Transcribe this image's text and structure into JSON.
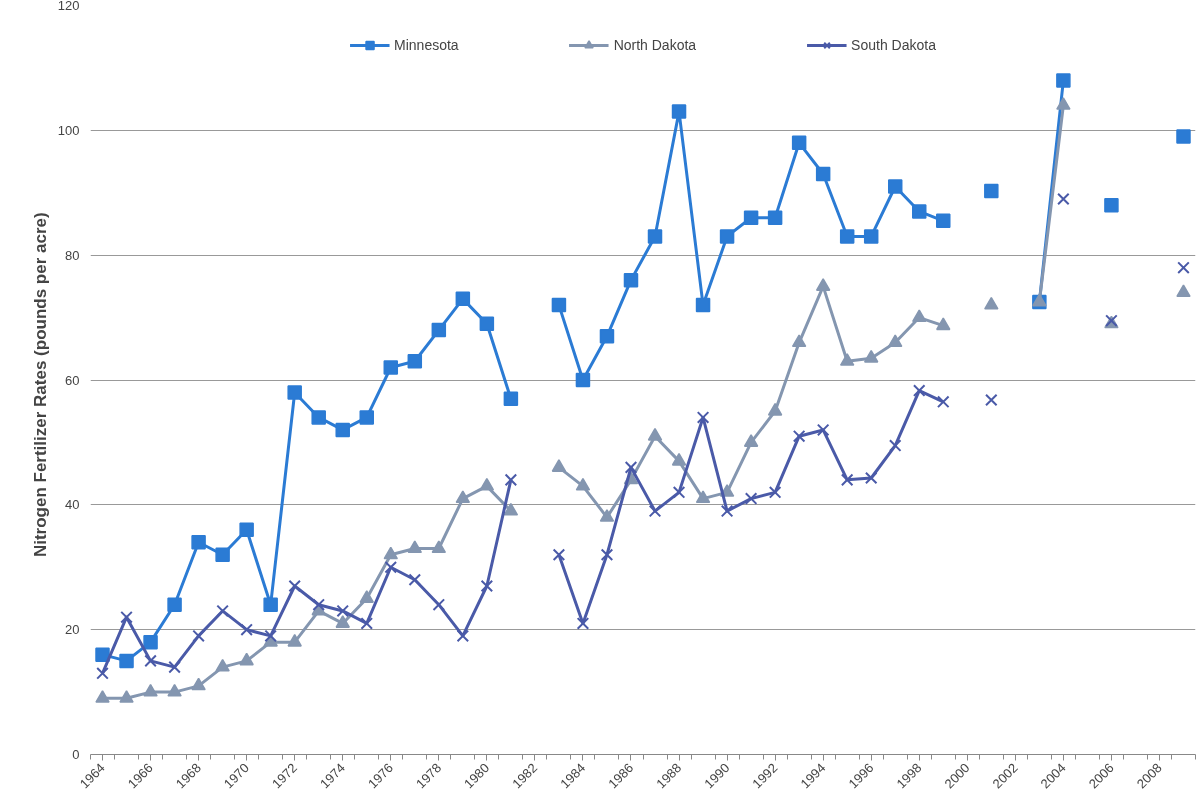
{
  "chart_data": {
    "type": "line",
    "ylabel": "Nitrogen   Fertilizer Rates (pounds per acre)",
    "categories": [
      "1964",
      null,
      "1966",
      null,
      "1968",
      null,
      "1970",
      null,
      "1972",
      null,
      "1974",
      null,
      "1976",
      null,
      "1978",
      null,
      "1980",
      null,
      "1982",
      null,
      "1984",
      null,
      "1986",
      null,
      "1988",
      null,
      "1990",
      null,
      "1992",
      null,
      "1994",
      null,
      "1996",
      null,
      "1998",
      null,
      "2000",
      null,
      "2002",
      null,
      "2004",
      null,
      "2006",
      null,
      "2008",
      null
    ],
    "series": [
      {
        "name": "Minnesota",
        "color": "#2b7bd4",
        "marker": "square",
        "values": [
          16,
          15,
          18,
          24,
          34,
          32,
          36,
          24,
          58,
          54,
          52,
          54,
          62,
          63,
          68,
          73,
          69,
          57,
          null,
          72,
          60,
          67,
          76,
          83,
          103,
          72,
          83,
          86,
          86,
          98,
          93,
          83,
          83,
          91,
          87,
          85.5,
          null,
          90.3,
          null,
          72.5,
          108,
          null,
          88,
          null,
          null,
          99
        ]
      },
      {
        "name": "North Dakota",
        "color": "#8496b0",
        "marker": "triangle",
        "values": [
          9,
          9,
          10,
          10,
          11,
          14,
          15,
          18,
          18,
          23,
          21,
          25,
          32,
          33,
          33,
          41,
          43,
          39,
          null,
          46,
          43,
          38,
          44,
          51,
          47,
          41,
          42,
          50,
          55,
          66,
          75,
          63,
          63.5,
          66,
          70,
          68.7,
          null,
          72,
          null,
          72.5,
          104,
          null,
          69,
          null,
          null,
          74
        ]
      },
      {
        "name": "South Dakota",
        "color": "#4a5aa8",
        "marker": "cross",
        "values": [
          13,
          22,
          15,
          14,
          19,
          23,
          20,
          19,
          27,
          24,
          23,
          21,
          30,
          28,
          24,
          19,
          27,
          44,
          null,
          32,
          21,
          32,
          46,
          39,
          42,
          54,
          39,
          41,
          42,
          51,
          52,
          44,
          44.3,
          49.5,
          58.3,
          56.5,
          null,
          56.8,
          null,
          null,
          89,
          null,
          69.5,
          null,
          null,
          78
        ]
      }
    ],
    "ylim": [
      0,
      120
    ],
    "yticks": [
      0,
      20,
      40,
      60,
      80,
      100,
      120
    ],
    "grid": "y",
    "legend": "top",
    "line_style": "solid"
  }
}
